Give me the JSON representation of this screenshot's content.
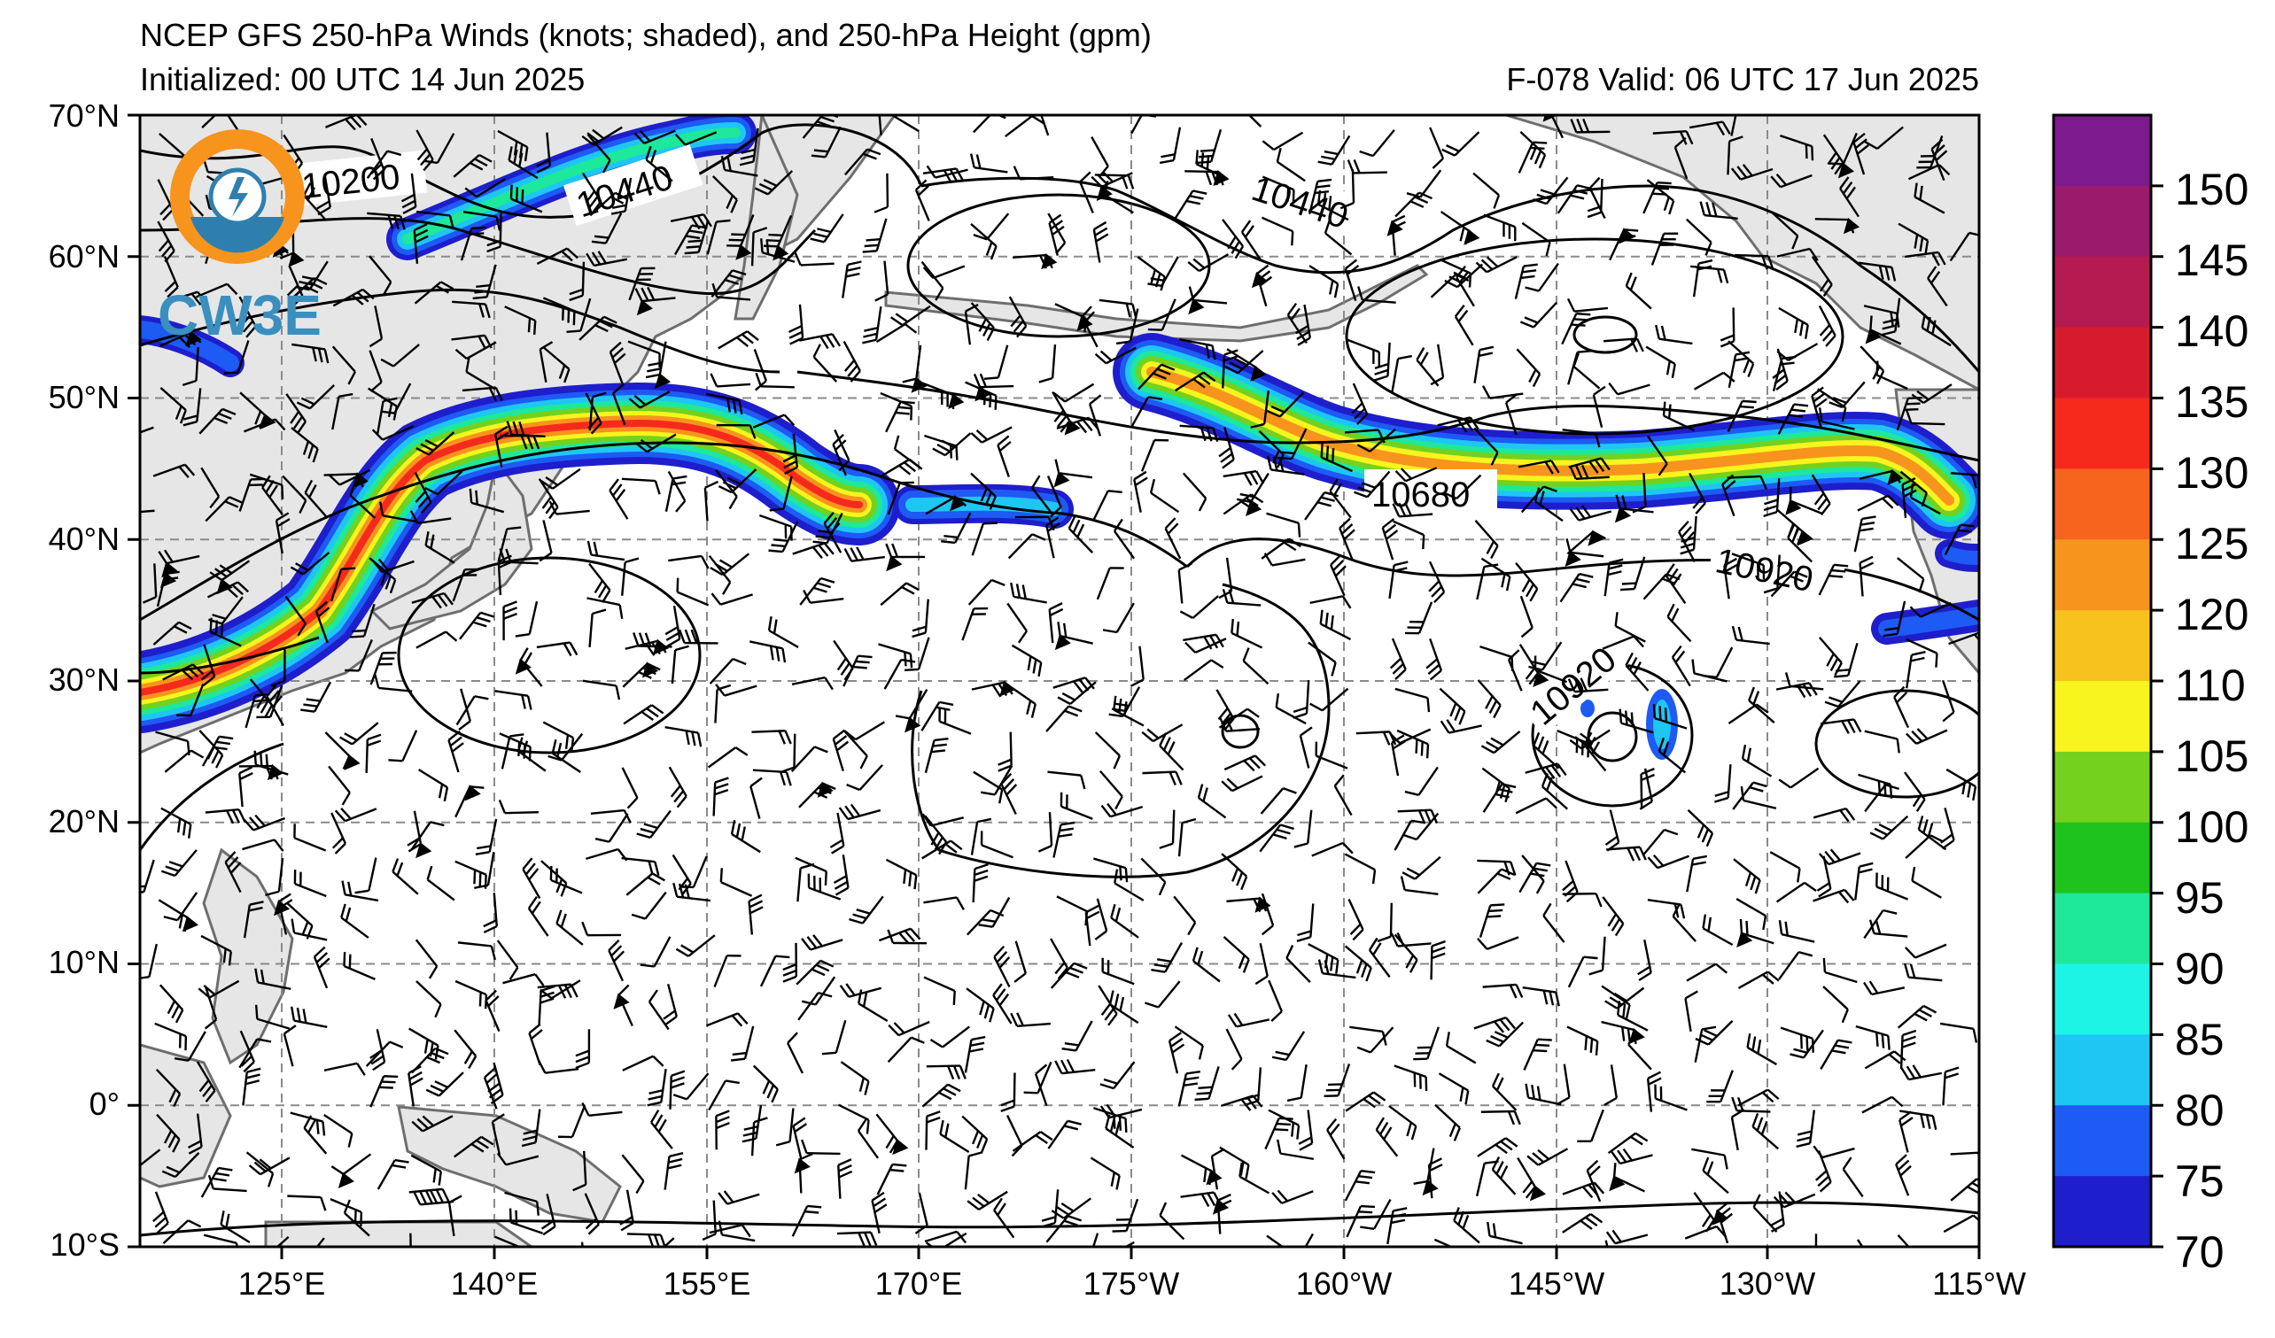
{
  "header": {
    "title": "NCEP GFS 250-hPa Winds (knots; shaded), and 250-hPa Height (gpm)",
    "initialized": "Initialized: 00 UTC 14 Jun 2025",
    "valid": "F-078  Valid: 06 UTC 17 Jun 2025"
  },
  "map": {
    "lat_labels": [
      "70°N",
      "60°N",
      "50°N",
      "40°N",
      "30°N",
      "20°N",
      "10°N",
      "0°",
      "10°S"
    ],
    "lon_labels": [
      "125°E",
      "140°E",
      "155°E",
      "170°E",
      "175°W",
      "160°W",
      "145°W",
      "130°W",
      "115°W"
    ],
    "land_color": "#e6e6e6",
    "coast_color": "#6e6e6e",
    "grid_color": "#8a8a8a"
  },
  "contours": {
    "labels": [
      "10200",
      "10440",
      "10440",
      "10680",
      "10920",
      "10920"
    ]
  },
  "colorbar": {
    "ticks": [
      "150",
      "145",
      "140",
      "135",
      "130",
      "125",
      "120",
      "110",
      "105",
      "100",
      "95",
      "90",
      "85",
      "80",
      "75",
      "70"
    ],
    "colors": [
      "#7d1a8e",
      "#9a1a6c",
      "#b51a50",
      "#d61c2c",
      "#f52a1c",
      "#f7641e",
      "#f7941e",
      "#f7c21e",
      "#f7f41e",
      "#74d11e",
      "#1ec31e",
      "#1ee89a",
      "#1ef4e6",
      "#1ec6f4",
      "#1e5af4",
      "#1e1ecc"
    ]
  },
  "logo": {
    "text": "CW3E"
  }
}
